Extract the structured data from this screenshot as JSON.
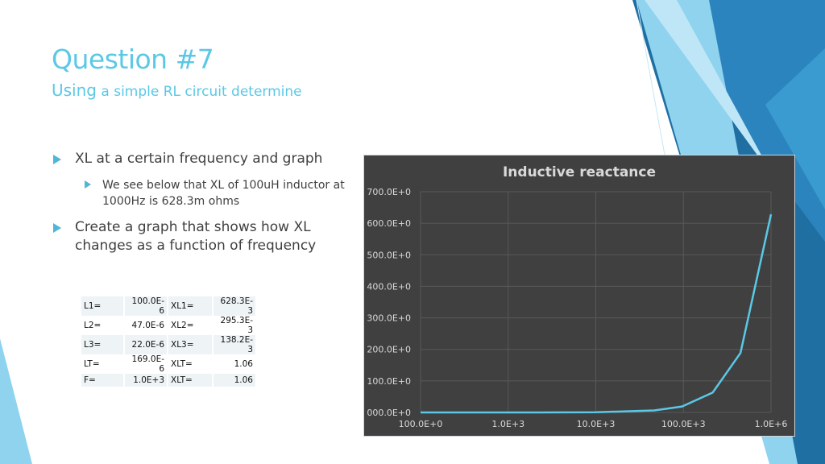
{
  "slide": {
    "title": "Question #7",
    "subtitle_first": "Using",
    "subtitle_rest": " a simple RL circuit determine",
    "bullets": [
      {
        "text": "XL at a certain frequency and graph",
        "sub": [
          "We see below that XL of 100uH inductor at 1000Hz is 628.3m ohms"
        ]
      },
      {
        "text": "Create a graph that shows how XL changes as a function of frequency",
        "sub": []
      }
    ]
  },
  "table": {
    "rows": [
      [
        "L1=",
        "100.0E-6",
        "XL1=",
        "628.3E-3"
      ],
      [
        "L2=",
        "47.0E-6",
        "XL2=",
        "295.3E-3"
      ],
      [
        "L3=",
        "22.0E-6",
        "XL3=",
        "138.2E-3"
      ],
      [
        "LT=",
        "169.0E-6",
        "XLT=",
        "1.06"
      ],
      [
        "F=",
        "1.0E+3",
        "XLT=",
        "1.06"
      ]
    ]
  },
  "colors": {
    "accent": "#5bc8e6",
    "chart_bg": "#404040",
    "line": "#5bc8e6"
  },
  "chart_data": {
    "type": "line",
    "title": "Inductive reactance",
    "xlabel": "",
    "ylabel": "",
    "x_scale": "log",
    "xlim": [
      1,
      1000000
    ],
    "ylim": [
      0,
      700
    ],
    "grid": true,
    "x_tick_labels": [
      "100.0E+0",
      "1.0E+3",
      "10.0E+3",
      "100.0E+3",
      "1.0E+6"
    ],
    "y_tick_labels": [
      "000.0E+0",
      "100.0E+0",
      "200.0E+0",
      "300.0E+0",
      "400.0E+0",
      "500.0E+0",
      "600.0E+0",
      "700.0E+0"
    ],
    "x": [
      1,
      10,
      100,
      1000,
      10000,
      30000,
      100000,
      300000,
      1000000
    ],
    "series": [
      {
        "values": [
          0.0006,
          0.006,
          0.06,
          0.63,
          6.3,
          18.8,
          62.8,
          188.5,
          628.3
        ]
      }
    ]
  }
}
